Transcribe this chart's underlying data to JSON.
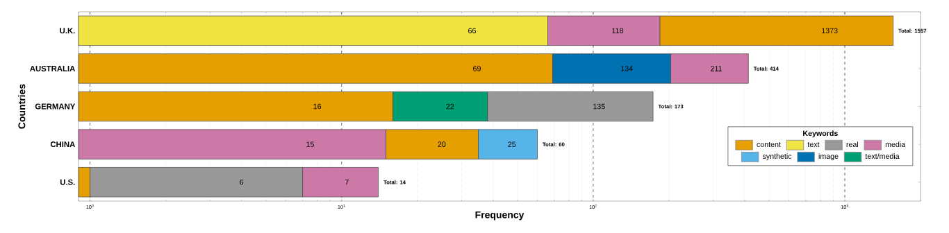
{
  "chart_data": {
    "type": "bar",
    "orientation": "horizontal",
    "xlabel": "Frequency",
    "ylabel": "Countries",
    "legend_title": "Keywords",
    "categories": [
      "U.K.",
      "AUSTRALIA",
      "GERMANY",
      "CHINA",
      "U.S."
    ],
    "series": [
      {
        "name": "content",
        "color": "#e69f00",
        "values": [
          1373,
          69,
          16,
          20,
          1
        ],
        "base": [
          184,
          0,
          0,
          15,
          0
        ],
        "value_labels": [
          "1373",
          "69",
          "16",
          "20",
          null
        ]
      },
      {
        "name": "text",
        "color": "#f0e442",
        "values": [
          66,
          null,
          null,
          null,
          null
        ],
        "base": [
          0,
          null,
          null,
          null,
          null
        ],
        "value_labels": [
          "66",
          null,
          null,
          null,
          null
        ]
      },
      {
        "name": "real",
        "color": "#999999",
        "values": [
          null,
          null,
          135,
          null,
          6
        ],
        "base": [
          null,
          null,
          38,
          null,
          1
        ],
        "value_labels": [
          null,
          null,
          "135",
          null,
          "6"
        ]
      },
      {
        "name": "media",
        "color": "#cc79a7",
        "values": [
          118,
          211,
          null,
          15,
          7
        ],
        "base": [
          66,
          203,
          null,
          0,
          7
        ],
        "value_labels": [
          "118",
          "211",
          null,
          "15",
          "7"
        ]
      },
      {
        "name": "synthetic",
        "color": "#56b4e9",
        "values": [
          null,
          null,
          null,
          25,
          null
        ],
        "base": [
          null,
          null,
          null,
          35,
          null
        ],
        "value_labels": [
          null,
          null,
          null,
          "25",
          null
        ]
      },
      {
        "name": "image",
        "color": "#0072b2",
        "values": [
          null,
          134,
          null,
          null,
          null
        ],
        "base": [
          null,
          69,
          null,
          null,
          null
        ],
        "value_labels": [
          null,
          "134",
          null,
          null,
          null
        ]
      },
      {
        "name": "text/media",
        "color": "#009e73",
        "values": [
          null,
          null,
          22,
          null,
          null
        ],
        "base": [
          null,
          null,
          16,
          null,
          null
        ],
        "value_labels": [
          null,
          null,
          "22",
          null,
          null
        ]
      }
    ],
    "totals": [
      "Total: 1557",
      "Total: 414",
      "Total: 173",
      "Total: 60",
      "Total: 14"
    ],
    "log": "x",
    "xlim": [
      0.9,
      2000
    ],
    "xticks": [
      {
        "value": 1,
        "label": "10$^{0}$"
      },
      {
        "value": 10,
        "label": "10$^{1}$"
      },
      {
        "value": 100,
        "label": "10$^{2}$"
      },
      {
        "value": 1000,
        "label": "10$^{3}$"
      }
    ],
    "grid": "x",
    "legend": "lower right"
  }
}
